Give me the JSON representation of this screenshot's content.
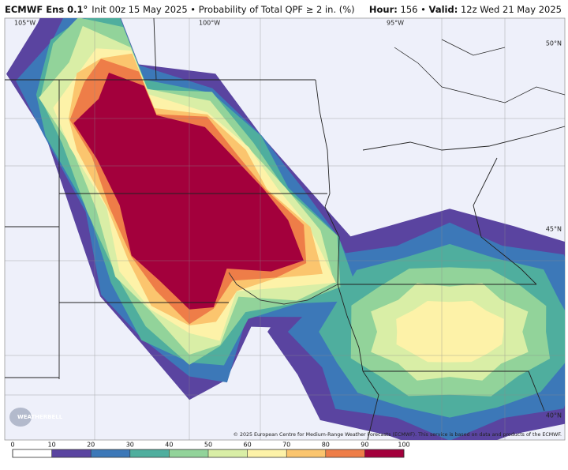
{
  "header": {
    "title": "ECMWF Ens 0.1°",
    "subtitle": "Init 00z 15 May 2025 • Probability of Total QPF ≥ 2 in. (%)",
    "right": [
      {
        "text": "Hour:",
        "bold": true
      },
      {
        "text": " 156 • ",
        "bold": false
      },
      {
        "text": "Valid:",
        "bold": true
      },
      {
        "text": " 12z Wed 21 May 2025",
        "bold": false
      }
    ]
  },
  "map": {
    "lon_labels": [
      "105°W",
      "100°W",
      "95°W"
    ],
    "lat_labels": [
      "50°N",
      "45°N",
      "40°N"
    ],
    "logo": "WEATHERBELL",
    "credit": "© 2025 European Centre for Medium-Range Weather Forecasts (ECMWF). This service is based on data and products of the ECMWF."
  },
  "colorbar": {
    "ticks": [
      0,
      10,
      20,
      30,
      40,
      50,
      60,
      70,
      80,
      90,
      100
    ],
    "colors": [
      "#ffffff",
      "#5a44a0",
      "#3c78b8",
      "#4fae9e",
      "#92d39a",
      "#d9eea6",
      "#fdf2a8",
      "#fbc56e",
      "#ee7d48",
      "#a3003c"
    ]
  }
}
